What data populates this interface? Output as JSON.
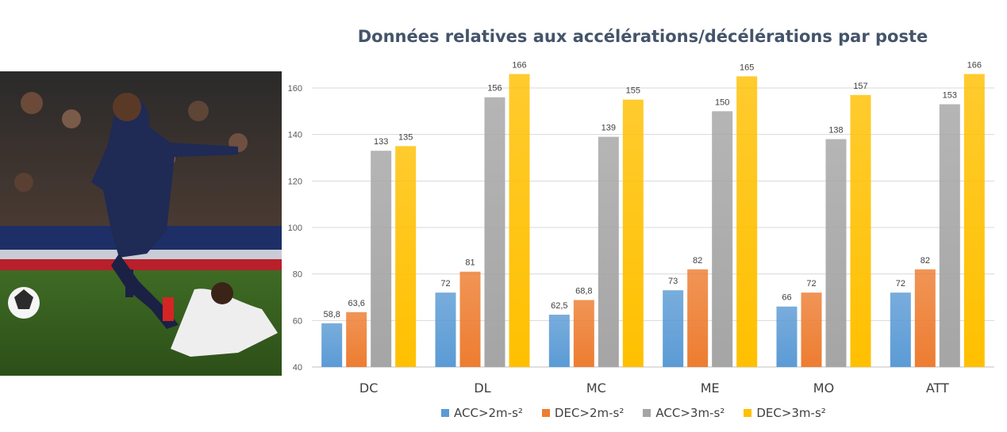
{
  "colors": {
    "acc2": "#5b9bd5",
    "dec2": "#ed7d31",
    "acc3": "#a5a5a5",
    "dec3": "#ffc000"
  },
  "chart_data": {
    "type": "bar",
    "title": "Données relatives aux accélérations/décélérations par poste",
    "categories": [
      "DC",
      "DL",
      "MC",
      "ME",
      "MO",
      "ATT"
    ],
    "series": [
      {
        "name": "ACC>2m-s²",
        "color_key": "acc2",
        "values": [
          58.8,
          72,
          62.5,
          73,
          66,
          72
        ],
        "labels": [
          "58,8",
          "72",
          "62,5",
          "73",
          "66",
          "72"
        ]
      },
      {
        "name": "DEC>2m-s²",
        "color_key": "dec2",
        "values": [
          63.6,
          81,
          68.8,
          82,
          72,
          82
        ],
        "labels": [
          "63,6",
          "81",
          "68,8",
          "82",
          "72",
          "82"
        ]
      },
      {
        "name": "ACC>3m-s²",
        "color_key": "acc3",
        "values": [
          133,
          156,
          139,
          150,
          138,
          153
        ],
        "labels": [
          "133",
          "156",
          "139",
          "150",
          "138",
          "153"
        ]
      },
      {
        "name": "DEC>3m-s²",
        "color_key": "dec3",
        "values": [
          135,
          166,
          155,
          165,
          157,
          166
        ],
        "labels": [
          "135",
          "166",
          "155",
          "165",
          "157",
          "166"
        ]
      }
    ],
    "ylim": [
      40,
      160
    ],
    "yticks": [
      40,
      60,
      80,
      100,
      120,
      140,
      160
    ],
    "grid": true,
    "legend": "bottom"
  }
}
